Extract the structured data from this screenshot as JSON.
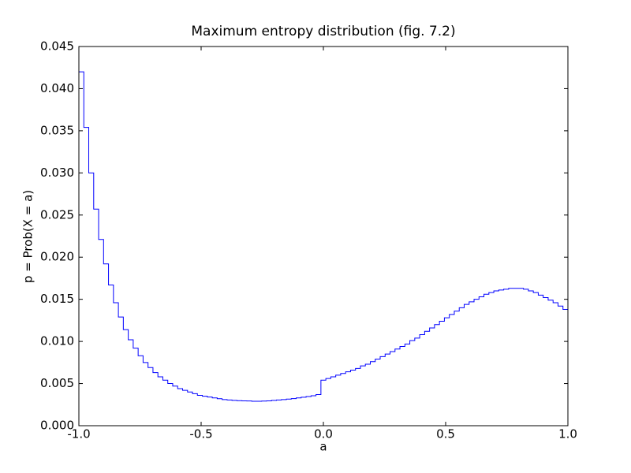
{
  "chart_data": {
    "type": "step",
    "title": "Maximum entropy distribution (fig. 7.2)",
    "xlabel": "a",
    "ylabel": "p = Prob(X = a)",
    "color": "#0000ff",
    "xlim": [
      -1,
      1
    ],
    "ylim": [
      0,
      0.045
    ],
    "xticks": [
      {
        "value": -1,
        "label": "-1.0"
      },
      {
        "value": -0.5,
        "label": "-0.5"
      },
      {
        "value": 0,
        "label": "0.0"
      },
      {
        "value": 0.5,
        "label": "0.5"
      },
      {
        "value": 1,
        "label": "1.0"
      }
    ],
    "yticks": [
      {
        "value": 0,
        "label": "0.000"
      },
      {
        "value": 0.005,
        "label": "0.005"
      },
      {
        "value": 0.01,
        "label": "0.010"
      },
      {
        "value": 0.015,
        "label": "0.015"
      },
      {
        "value": 0.02,
        "label": "0.020"
      },
      {
        "value": 0.025,
        "label": "0.025"
      },
      {
        "value": 0.03,
        "label": "0.030"
      },
      {
        "value": 0.035,
        "label": "0.035"
      },
      {
        "value": 0.04,
        "label": "0.040"
      },
      {
        "value": 0.045,
        "label": "0.045"
      }
    ],
    "x": [
      -1,
      -0.9798,
      -0.9596,
      -0.9394,
      -0.9192,
      -0.899,
      -0.8788,
      -0.8586,
      -0.8384,
      -0.8182,
      -0.798,
      -0.7778,
      -0.7576,
      -0.7374,
      -0.7172,
      -0.697,
      -0.6768,
      -0.6566,
      -0.6364,
      -0.6162,
      -0.596,
      -0.5758,
      -0.5556,
      -0.5354,
      -0.5152,
      -0.4949,
      -0.4747,
      -0.4545,
      -0.4343,
      -0.4141,
      -0.3939,
      -0.3737,
      -0.3535,
      -0.3333,
      -0.3131,
      -0.2929,
      -0.2727,
      -0.2525,
      -0.2323,
      -0.2121,
      -0.1919,
      -0.1717,
      -0.1515,
      -0.1313,
      -0.1111,
      -0.0909,
      -0.0707,
      -0.0505,
      -0.0303,
      -0.0101,
      0.0101,
      0.0303,
      0.0505,
      0.0707,
      0.0909,
      0.1111,
      0.1313,
      0.1515,
      0.1717,
      0.1919,
      0.2121,
      0.2323,
      0.2525,
      0.2727,
      0.2929,
      0.3131,
      0.3333,
      0.3535,
      0.3737,
      0.3939,
      0.4141,
      0.4343,
      0.4545,
      0.4747,
      0.4949,
      0.5152,
      0.5354,
      0.5556,
      0.5758,
      0.596,
      0.6162,
      0.6364,
      0.6566,
      0.6768,
      0.697,
      0.7172,
      0.7374,
      0.7576,
      0.7778,
      0.798,
      0.8182,
      0.8384,
      0.8586,
      0.8788,
      0.899,
      0.9192,
      0.9394,
      0.9596,
      0.9798,
      1
    ],
    "values": [
      0.0419,
      0.042,
      0.0354,
      0.03,
      0.0257,
      0.0221,
      0.0192,
      0.0167,
      0.0146,
      0.0129,
      0.0114,
      0.0102,
      0.0092,
      0.0083,
      0.0075,
      0.0069,
      0.0063,
      0.0058,
      0.0054,
      0.005,
      0.0047,
      0.0044,
      0.0042,
      0.004,
      0.0038,
      0.0036,
      0.0035,
      0.0034,
      0.0033,
      0.0032,
      0.0031,
      0.00305,
      0.003,
      0.00297,
      0.00295,
      0.00293,
      0.0029,
      0.0029,
      0.00292,
      0.00295,
      0.003,
      0.00305,
      0.0031,
      0.00316,
      0.00322,
      0.0033,
      0.00338,
      0.00346,
      0.00355,
      0.0037,
      0.0054,
      0.0056,
      0.0058,
      0.006,
      0.0062,
      0.0064,
      0.0066,
      0.0068,
      0.0071,
      0.0073,
      0.0076,
      0.0079,
      0.0082,
      0.0085,
      0.0088,
      0.0091,
      0.0094,
      0.0097,
      0.0101,
      0.0104,
      0.0108,
      0.0112,
      0.0116,
      0.012,
      0.0124,
      0.0128,
      0.0132,
      0.0136,
      0.014,
      0.0144,
      0.0147,
      0.015,
      0.0153,
      0.0156,
      0.0158,
      0.016,
      0.0161,
      0.0162,
      0.0163,
      0.0163,
      0.0163,
      0.0162,
      0.016,
      0.0158,
      0.0155,
      0.0152,
      0.0149,
      0.0146,
      0.0142,
      0.0138
    ]
  }
}
